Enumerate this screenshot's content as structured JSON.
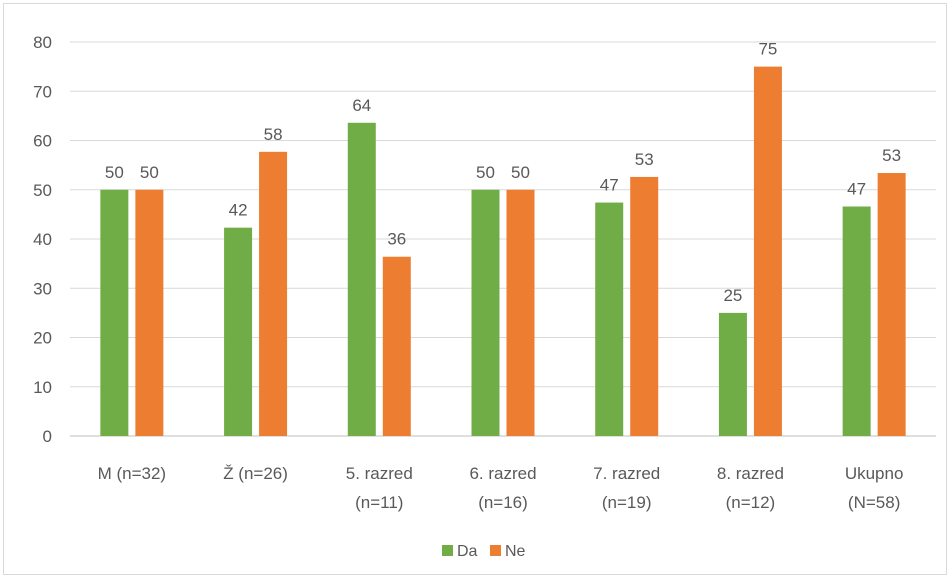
{
  "chart_data": {
    "type": "bar",
    "categories": [
      [
        "M (n=32)"
      ],
      [
        "Ž (n=26)"
      ],
      [
        "5. razred",
        "(n=11)"
      ],
      [
        "6. razred",
        "(n=16)"
      ],
      [
        "7. razred",
        "(n=19)"
      ],
      [
        "8. razred",
        "(n=12)"
      ],
      [
        "Ukupno",
        "(N=58)"
      ]
    ],
    "series": [
      {
        "name": "Da",
        "color": "#70ad47",
        "values": [
          50,
          42.3,
          63.6,
          50,
          47.4,
          25,
          46.6
        ],
        "labels": [
          "50",
          "42",
          "64",
          "50",
          "47",
          "25",
          "47"
        ]
      },
      {
        "name": "Ne",
        "color": "#ed7d31",
        "values": [
          50,
          57.7,
          36.4,
          50,
          52.6,
          75,
          53.4
        ],
        "labels": [
          "50",
          "58",
          "36",
          "50",
          "53",
          "75",
          "53"
        ]
      }
    ],
    "ylim": [
      0,
      80
    ],
    "yticks": [
      "0",
      "10",
      "20",
      "30",
      "40",
      "50",
      "60",
      "70",
      "80"
    ],
    "grid": true,
    "legend": "bottom"
  }
}
